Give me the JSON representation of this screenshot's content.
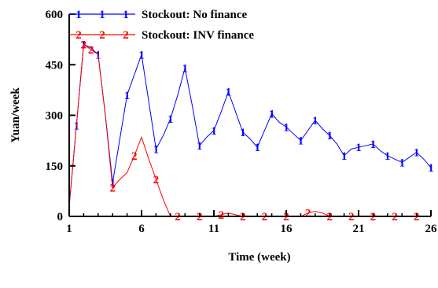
{
  "chart_data": {
    "type": "line",
    "xlabel": "Time (week)",
    "ylabel": "Yuan/week",
    "xlim": [
      1,
      26
    ],
    "ylim": [
      0,
      600
    ],
    "xticks": [
      1,
      6,
      11,
      16,
      21,
      26
    ],
    "yticks": [
      0,
      150,
      300,
      450,
      600
    ],
    "grid": false,
    "legend_position": "top",
    "series": [
      {
        "name": "Stockout: No finance",
        "marker": "1",
        "color": "#0000ff",
        "x": [
          1,
          1.5,
          2,
          2.5,
          3,
          3.5,
          4,
          4.5,
          5,
          5.5,
          6,
          6.5,
          7,
          7.5,
          8,
          8.5,
          9,
          9.5,
          10,
          10.5,
          11,
          11.5,
          12,
          12.5,
          13,
          13.5,
          14,
          14.5,
          15,
          15.5,
          16,
          16.5,
          17,
          17.5,
          18,
          18.5,
          19,
          19.5,
          20,
          20.5,
          21,
          21.5,
          22,
          22.5,
          23,
          23.5,
          24,
          24.5,
          25,
          25.5,
          26
        ],
        "y": [
          30,
          270,
          510,
          500,
          480,
          300,
          100,
          230,
          360,
          420,
          480,
          340,
          200,
          240,
          290,
          360,
          440,
          330,
          210,
          235,
          255,
          310,
          370,
          310,
          250,
          230,
          205,
          255,
          305,
          280,
          265,
          245,
          225,
          255,
          285,
          260,
          240,
          215,
          180,
          200,
          205,
          210,
          215,
          195,
          180,
          170,
          160,
          175,
          190,
          170,
          145
        ]
      },
      {
        "name": "Stockout: INV finance",
        "marker": "2",
        "color": "#ff0000",
        "x": [
          1,
          1.5,
          2,
          2.5,
          3,
          3.5,
          4,
          4.5,
          5,
          5.5,
          6,
          6.5,
          7,
          7.5,
          8,
          8.5,
          9,
          9.5,
          10,
          10.5,
          11,
          11.5,
          12,
          12.5,
          13,
          13.5,
          14,
          14.5,
          15,
          15.5,
          16,
          16.5,
          17,
          17.5,
          18,
          18.5,
          19,
          19.5,
          20,
          20.5,
          21,
          21.5,
          22,
          22.5,
          23,
          23.5,
          24,
          24.5,
          25,
          25.5,
          26
        ],
        "y": [
          30,
          270,
          510,
          495,
          480,
          300,
          85,
          110,
          130,
          180,
          235,
          170,
          110,
          50,
          0,
          0,
          0,
          0,
          0,
          0,
          0,
          5,
          10,
          5,
          0,
          0,
          0,
          0,
          0,
          0,
          0,
          0,
          0,
          10,
          15,
          10,
          0,
          0,
          0,
          0,
          0,
          0,
          0,
          0,
          0,
          0,
          0,
          0,
          0,
          0,
          0
        ]
      }
    ]
  }
}
